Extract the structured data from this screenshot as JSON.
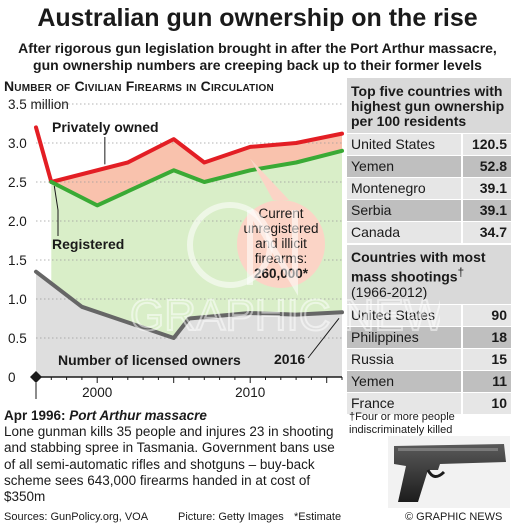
{
  "header": {
    "title": "Australian gun ownership on the rise",
    "subtitle": "After rigorous gun legislation brought in after the Port Arthur massacre, gun ownership numbers are creeping back up to their former levels"
  },
  "chart_data": {
    "type": "line",
    "title": "Number of Civilian Firearms in Circulation",
    "ylim": [
      0,
      3.5
    ],
    "xlim": [
      1996,
      2016
    ],
    "y_ticks": [
      "0",
      "0.5",
      "1.0",
      "1.5",
      "2.0",
      "2.5",
      "3.0",
      "3.5 million"
    ],
    "x_ticks": [
      {
        "x": 2000,
        "label": "2000"
      },
      {
        "x": 2010,
        "label": "2010"
      }
    ],
    "series": [
      {
        "name": "Privately owned",
        "color": "#e31e24",
        "x": [
          1996,
          1997,
          2002,
          2005,
          2007,
          2010,
          2013,
          2016
        ],
        "y": [
          3.2,
          2.5,
          2.75,
          3.05,
          2.75,
          2.95,
          3.0,
          3.12
        ]
      },
      {
        "name": "Registered",
        "color": "#3aaa35",
        "x": [
          1997,
          2000,
          2005,
          2007,
          2010,
          2013,
          2016
        ],
        "y": [
          2.5,
          2.2,
          2.65,
          2.5,
          2.65,
          2.75,
          2.9
        ]
      },
      {
        "name": "Number of licensed owners",
        "color": "#666666",
        "x": [
          1996,
          1999,
          2002,
          2005,
          2006,
          2010,
          2013,
          2016
        ],
        "y": [
          1.35,
          0.9,
          0.7,
          0.5,
          0.75,
          0.82,
          0.8,
          0.83
        ]
      }
    ],
    "annotations": {
      "unregistered_label": "Current unregistered and illicit firearms:",
      "unregistered_value": "260,000*",
      "year_label": "2016"
    }
  },
  "event": {
    "date": "Apr 1996:",
    "name": "Port Arthur massacre",
    "text": "Lone gunman kills 35 people and injures 23 in shooting and stabbing spree in Tasmania. Government bans use of all semi-automatic rifles and shotguns – buy-back scheme sees 643,000 firearms handed in at cost of $350m"
  },
  "top_ownership": {
    "heading": "Top five countries with highest gun ownership per 100 residents",
    "rows": [
      {
        "country": "United States",
        "value": "120.5"
      },
      {
        "country": "Yemen",
        "value": "52.8"
      },
      {
        "country": "Montenegro",
        "value": "39.1"
      },
      {
        "country": "Serbia",
        "value": "39.1"
      },
      {
        "country": "Canada",
        "value": "34.7"
      }
    ]
  },
  "mass_shootings": {
    "heading": "Countries with most mass shootings",
    "dagger": "†",
    "period": "(1966-2012)",
    "rows": [
      {
        "country": "United States",
        "value": "90"
      },
      {
        "country": "Philippines",
        "value": "18"
      },
      {
        "country": "Russia",
        "value": "15"
      },
      {
        "country": "Yemen",
        "value": "11"
      },
      {
        "country": "France",
        "value": "10"
      }
    ],
    "footnote": "†Four or more people indiscriminately killed"
  },
  "footer": {
    "sources": "Sources: GunPolicy.org, VOA",
    "picture": "Picture: Getty Images",
    "estimate": "*Estimate",
    "credit": "© GRAPHIC NEWS"
  },
  "colors": {
    "private_fill": "#f9c2ad",
    "registered_fill": "#d9eec8",
    "licensed_fill": "#dedede"
  }
}
